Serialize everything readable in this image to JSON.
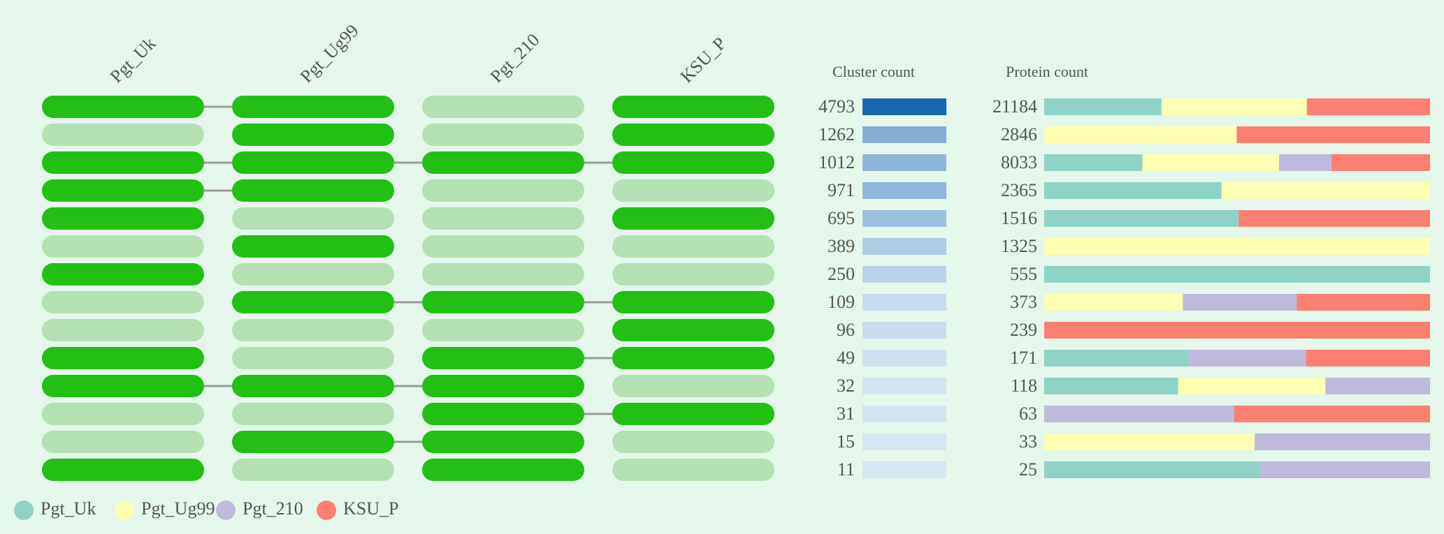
{
  "colors": {
    "background": "#e4f7ea",
    "present": "#22bf15",
    "absent": "#b5e0b4",
    "connector": "#9a9a9a",
    "text": "#555555",
    "cluster_bar_max": "#1766ae",
    "cluster_bar_min": "#dce9f5"
  },
  "chart_data": {
    "type": "upset",
    "genomes": [
      "Pgt_Uk",
      "Pgt_Ug99",
      "Pgt_210",
      "KSU_P"
    ],
    "genome_colors": [
      "#8fd3c7",
      "#ffffb3",
      "#bfbadb",
      "#fb8072"
    ],
    "cluster_count_label": "Cluster count",
    "protein_count_label": "Protein count",
    "legend_position": "bottom-left",
    "rows": [
      {
        "membership": [
          1,
          1,
          0,
          1
        ],
        "cluster_count": 4793,
        "protein_count": 21184,
        "protein_split": [
          6442,
          7980,
          0,
          6762
        ]
      },
      {
        "membership": [
          0,
          1,
          0,
          1
        ],
        "cluster_count": 1262,
        "protein_count": 2846,
        "protein_split": [
          0,
          1420,
          0,
          1426
        ]
      },
      {
        "membership": [
          1,
          1,
          1,
          1
        ],
        "cluster_count": 1012,
        "protein_count": 8033,
        "protein_split": [
          2044,
          2845,
          1093,
          2051
        ]
      },
      {
        "membership": [
          1,
          1,
          0,
          0
        ],
        "cluster_count": 971,
        "protein_count": 2365,
        "protein_split": [
          1087,
          1278,
          0,
          0
        ]
      },
      {
        "membership": [
          1,
          0,
          0,
          1
        ],
        "cluster_count": 695,
        "protein_count": 1516,
        "protein_split": [
          764,
          0,
          0,
          752
        ]
      },
      {
        "membership": [
          0,
          1,
          0,
          0
        ],
        "cluster_count": 389,
        "protein_count": 1325,
        "protein_split": [
          0,
          1325,
          0,
          0
        ]
      },
      {
        "membership": [
          1,
          0,
          0,
          0
        ],
        "cluster_count": 250,
        "protein_count": 555,
        "protein_split": [
          555,
          0,
          0,
          0
        ]
      },
      {
        "membership": [
          0,
          1,
          1,
          1
        ],
        "cluster_count": 109,
        "protein_count": 373,
        "protein_split": [
          0,
          134,
          110,
          129
        ]
      },
      {
        "membership": [
          0,
          0,
          0,
          1
        ],
        "cluster_count": 96,
        "protein_count": 239,
        "protein_split": [
          0,
          0,
          0,
          239
        ]
      },
      {
        "membership": [
          1,
          0,
          1,
          1
        ],
        "cluster_count": 49,
        "protein_count": 171,
        "protein_split": [
          64,
          0,
          52,
          55
        ]
      },
      {
        "membership": [
          1,
          1,
          1,
          0
        ],
        "cluster_count": 32,
        "protein_count": 118,
        "protein_split": [
          41,
          45,
          32,
          0
        ]
      },
      {
        "membership": [
          0,
          0,
          1,
          1
        ],
        "cluster_count": 31,
        "protein_count": 63,
        "protein_split": [
          0,
          0,
          31,
          32
        ]
      },
      {
        "membership": [
          0,
          1,
          1,
          0
        ],
        "cluster_count": 15,
        "protein_count": 33,
        "protein_split": [
          0,
          18,
          15,
          0
        ]
      },
      {
        "membership": [
          1,
          0,
          1,
          0
        ],
        "cluster_count": 11,
        "protein_count": 25,
        "protein_split": [
          14,
          0,
          11,
          0
        ]
      }
    ]
  }
}
